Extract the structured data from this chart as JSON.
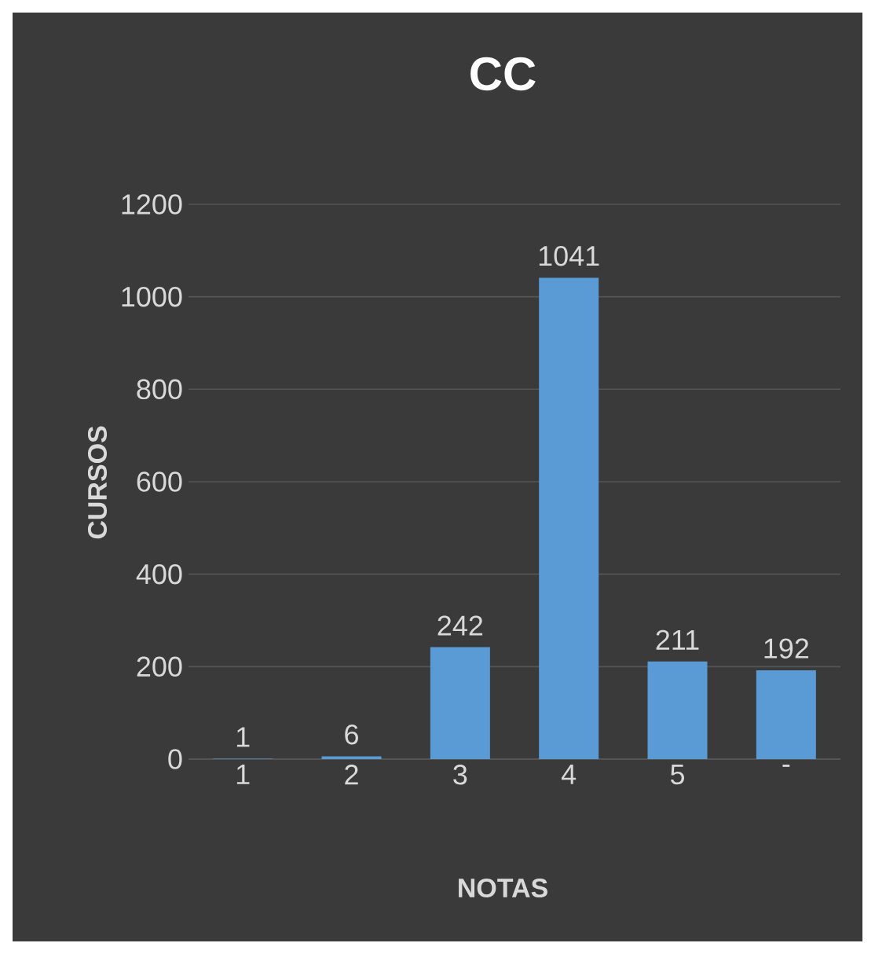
{
  "chart_data": {
    "type": "bar",
    "title": "CC",
    "xlabel": "NOTAS",
    "ylabel": "CURSOS",
    "categories": [
      "1",
      "2",
      "3",
      "4",
      "5",
      "-"
    ],
    "values": [
      1,
      6,
      242,
      1041,
      211,
      192
    ],
    "color": "#5b9bd5",
    "ylim": [
      0,
      1200
    ],
    "yticks": [
      0,
      200,
      400,
      600,
      800,
      1000,
      1200
    ],
    "grid": "y",
    "data_labels": true
  }
}
